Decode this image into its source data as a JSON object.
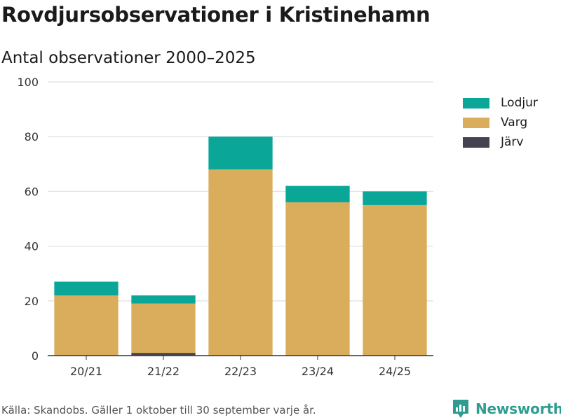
{
  "title": "Rovdjursobservationer i Kristinehamn",
  "subtitle": "Antal observationer 2000–2025",
  "source": "Källa: Skandobs. Gäller 1 oktober till 30 september varje år.",
  "brand": {
    "name": "Newsworthy",
    "icon": "newsworthy-logo-icon",
    "color": "#2e9c8f"
  },
  "chart_data": {
    "type": "bar",
    "stacked": true,
    "categories": [
      "20/21",
      "21/22",
      "22/23",
      "23/24",
      "24/25"
    ],
    "series": [
      {
        "name": "Järv",
        "color": "#44434f",
        "values": [
          0,
          1,
          0,
          0,
          0
        ]
      },
      {
        "name": "Varg",
        "color": "#d9ad5b",
        "values": [
          22,
          18,
          68,
          56,
          55
        ]
      },
      {
        "name": "Lodjur",
        "color": "#0aa698",
        "values": [
          5,
          3,
          12,
          6,
          5
        ]
      }
    ],
    "legend_order": [
      "Lodjur",
      "Varg",
      "Järv"
    ],
    "ylim": [
      0,
      100
    ],
    "yticks": [
      0,
      20,
      40,
      60,
      80,
      100
    ],
    "grid": true,
    "legend_position": "right"
  }
}
